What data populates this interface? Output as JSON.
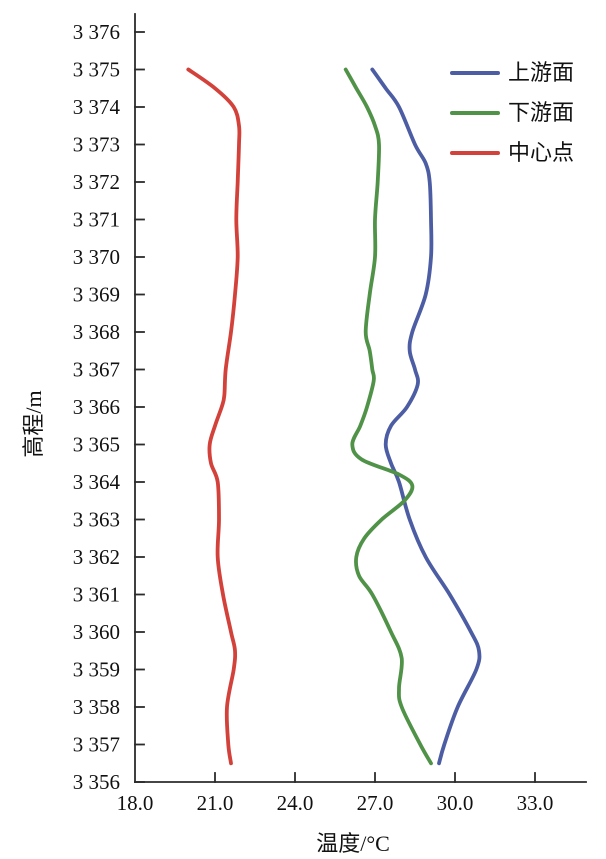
{
  "chart_data": {
    "type": "line",
    "title": "",
    "xlabel": "温度/°C",
    "ylabel": "高程/m",
    "xlim": [
      18.0,
      35.0
    ],
    "ylim": [
      3356,
      3376.5
    ],
    "grid": false,
    "legend_position": "upper-right",
    "x_ticks": [
      {
        "value": 18.0,
        "label": "18.0"
      },
      {
        "value": 21.0,
        "label": "21.0"
      },
      {
        "value": 24.0,
        "label": "24.0"
      },
      {
        "value": 27.0,
        "label": "27.0"
      },
      {
        "value": 30.0,
        "label": "30.0"
      },
      {
        "value": 33.0,
        "label": "33.0"
      }
    ],
    "y_ticks": [
      {
        "value": 3356,
        "label": "3 356"
      },
      {
        "value": 3357,
        "label": "3 357"
      },
      {
        "value": 3358,
        "label": "3 358"
      },
      {
        "value": 3359,
        "label": "3 359"
      },
      {
        "value": 3360,
        "label": "3 360"
      },
      {
        "value": 3361,
        "label": "3 361"
      },
      {
        "value": 3362,
        "label": "3 362"
      },
      {
        "value": 3363,
        "label": "3 363"
      },
      {
        "value": 3364,
        "label": "3 364"
      },
      {
        "value": 3365,
        "label": "3 365"
      },
      {
        "value": 3366,
        "label": "3 366"
      },
      {
        "value": 3367,
        "label": "3 367"
      },
      {
        "value": 3368,
        "label": "3 368"
      },
      {
        "value": 3369,
        "label": "3 369"
      },
      {
        "value": 3370,
        "label": "3 370"
      },
      {
        "value": 3371,
        "label": "3 371"
      },
      {
        "value": 3372,
        "label": "3 372"
      },
      {
        "value": 3373,
        "label": "3 373"
      },
      {
        "value": 3374,
        "label": "3 374"
      },
      {
        "value": 3375,
        "label": "3 375"
      },
      {
        "value": 3376,
        "label": "3 376"
      }
    ],
    "series": [
      {
        "name": "上游面",
        "color": "#4C5DA4",
        "points_format": "[elevation_m, temperature_C]",
        "points": [
          [
            3375.0,
            26.9
          ],
          [
            3374.5,
            27.4
          ],
          [
            3374.0,
            27.9
          ],
          [
            3373.0,
            28.5
          ],
          [
            3372.5,
            28.9
          ],
          [
            3372.0,
            29.05
          ],
          [
            3371.0,
            29.1
          ],
          [
            3370.0,
            29.1
          ],
          [
            3369.0,
            28.9
          ],
          [
            3368.0,
            28.4
          ],
          [
            3367.5,
            28.3
          ],
          [
            3367.0,
            28.5
          ],
          [
            3366.6,
            28.6
          ],
          [
            3366.0,
            28.2
          ],
          [
            3365.5,
            27.6
          ],
          [
            3365.0,
            27.4
          ],
          [
            3364.5,
            27.6
          ],
          [
            3364.0,
            27.9
          ],
          [
            3363.0,
            28.3
          ],
          [
            3362.0,
            28.9
          ],
          [
            3361.0,
            29.8
          ],
          [
            3360.0,
            30.6
          ],
          [
            3359.5,
            30.9
          ],
          [
            3359.0,
            30.8
          ],
          [
            3358.0,
            30.1
          ],
          [
            3357.0,
            29.6
          ],
          [
            3356.5,
            29.4
          ]
        ]
      },
      {
        "name": "下游面",
        "color": "#509348",
        "points_format": "[elevation_m, temperature_C]",
        "points": [
          [
            3375.0,
            25.9
          ],
          [
            3374.5,
            26.3
          ],
          [
            3374.0,
            26.7
          ],
          [
            3373.5,
            27.0
          ],
          [
            3373.0,
            27.15
          ],
          [
            3372.0,
            27.1
          ],
          [
            3371.0,
            27.0
          ],
          [
            3370.0,
            27.0
          ],
          [
            3369.0,
            26.8
          ],
          [
            3368.0,
            26.65
          ],
          [
            3367.5,
            26.8
          ],
          [
            3367.0,
            26.9
          ],
          [
            3366.7,
            26.95
          ],
          [
            3366.0,
            26.7
          ],
          [
            3365.5,
            26.45
          ],
          [
            3365.0,
            26.15
          ],
          [
            3364.6,
            26.5
          ],
          [
            3364.2,
            27.9
          ],
          [
            3363.9,
            28.4
          ],
          [
            3363.5,
            28.1
          ],
          [
            3363.0,
            27.25
          ],
          [
            3362.5,
            26.6
          ],
          [
            3362.0,
            26.3
          ],
          [
            3361.5,
            26.4
          ],
          [
            3361.0,
            26.9
          ],
          [
            3360.0,
            27.6
          ],
          [
            3359.3,
            28.0
          ],
          [
            3358.5,
            27.9
          ],
          [
            3358.0,
            28.0
          ],
          [
            3357.0,
            28.7
          ],
          [
            3356.5,
            29.1
          ]
        ]
      },
      {
        "name": "中心点",
        "color": "#D2423B",
        "points_format": "[elevation_m, temperature_C]",
        "points": [
          [
            3375.0,
            20.0
          ],
          [
            3374.5,
            21.0
          ],
          [
            3374.0,
            21.7
          ],
          [
            3373.5,
            21.9
          ],
          [
            3373.0,
            21.9
          ],
          [
            3372.0,
            21.85
          ],
          [
            3371.0,
            21.8
          ],
          [
            3370.0,
            21.85
          ],
          [
            3369.0,
            21.75
          ],
          [
            3368.0,
            21.6
          ],
          [
            3367.0,
            21.4
          ],
          [
            3366.3,
            21.35
          ],
          [
            3366.0,
            21.25
          ],
          [
            3365.5,
            21.0
          ],
          [
            3365.0,
            20.8
          ],
          [
            3364.5,
            20.85
          ],
          [
            3364.0,
            21.1
          ],
          [
            3363.0,
            21.15
          ],
          [
            3362.0,
            21.1
          ],
          [
            3361.0,
            21.3
          ],
          [
            3360.0,
            21.6
          ],
          [
            3359.5,
            21.75
          ],
          [
            3359.0,
            21.7
          ],
          [
            3358.0,
            21.45
          ],
          [
            3357.0,
            21.5
          ],
          [
            3356.5,
            21.6
          ]
        ]
      }
    ]
  }
}
